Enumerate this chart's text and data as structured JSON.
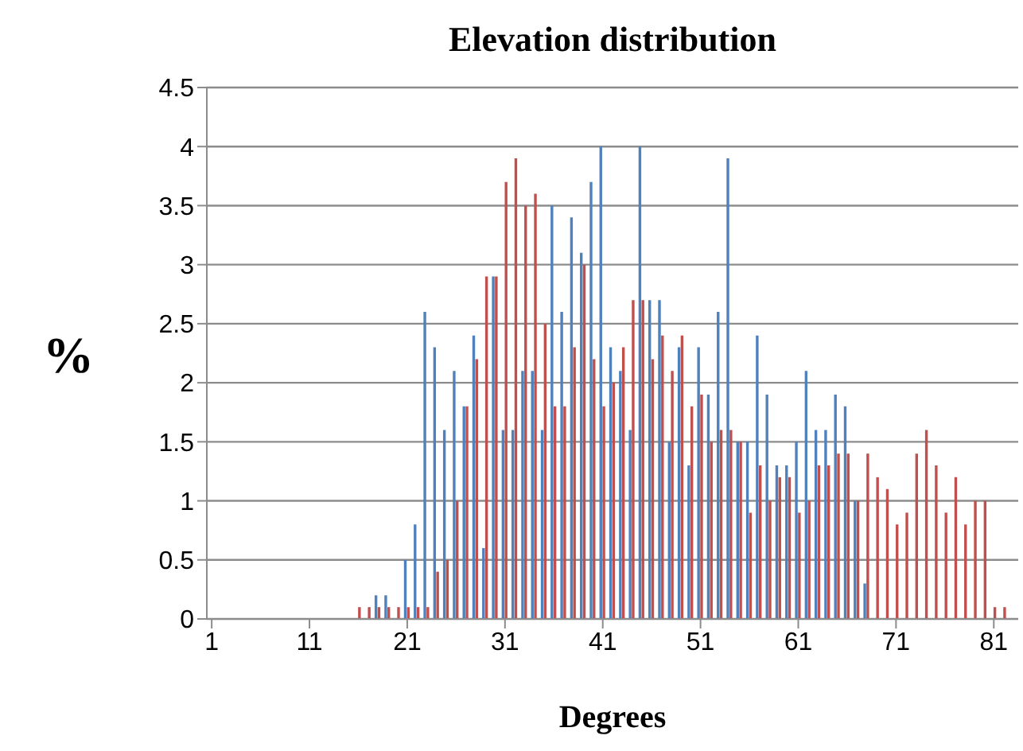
{
  "chart_data": {
    "type": "bar",
    "title": "Elevation distribution",
    "xlabel": "Degrees",
    "ylabel": "%",
    "categories": [
      "1",
      null,
      null,
      null,
      null,
      null,
      null,
      null,
      null,
      null,
      "11",
      null,
      null,
      null,
      null,
      null,
      null,
      null,
      null,
      null,
      "21",
      null,
      null,
      null,
      null,
      null,
      null,
      null,
      null,
      null,
      "31",
      null,
      null,
      null,
      null,
      null,
      null,
      null,
      null,
      null,
      "41",
      null,
      null,
      null,
      null,
      null,
      null,
      null,
      null,
      null,
      "51",
      null,
      null,
      null,
      null,
      null,
      null,
      null,
      null,
      null,
      "61",
      null,
      null,
      null,
      null,
      null,
      null,
      null,
      null,
      null,
      "71",
      null,
      null,
      null,
      null,
      null,
      null,
      null,
      null,
      null,
      "81",
      null,
      null
    ],
    "series": [
      {
        "color": "#4f81bd",
        "values": [
          0,
          0,
          0,
          0,
          0,
          0,
          0,
          0,
          0,
          0,
          0,
          0,
          0,
          0,
          0,
          0,
          0,
          0.2,
          0.2,
          0,
          0.5,
          0.8,
          2.6,
          2.3,
          1.6,
          2.1,
          1.8,
          2.4,
          0.6,
          2.9,
          1.6,
          1.6,
          2.1,
          2.1,
          1.6,
          3.5,
          2.6,
          3.4,
          3.1,
          3.7,
          4.0,
          2.3,
          2.1,
          1.6,
          4.0,
          2.7,
          2.7,
          1.5,
          2.3,
          1.3,
          2.3,
          1.9,
          2.6,
          3.9,
          1.5,
          1.5,
          2.4,
          1.9,
          1.3,
          1.3,
          1.5,
          2.1,
          1.6,
          1.6,
          1.9,
          1.8,
          1.0,
          0.3,
          0,
          0,
          0,
          0,
          0,
          0,
          0,
          0,
          0,
          0,
          0,
          0,
          0,
          0,
          0
        ]
      },
      {
        "color": "#c0504d",
        "values": [
          0,
          0,
          0,
          0,
          0,
          0,
          0,
          0,
          0,
          0,
          0,
          0,
          0,
          0,
          0,
          0.1,
          0.1,
          0.1,
          0.1,
          0.1,
          0.1,
          0.1,
          0.1,
          0.4,
          0.5,
          1.0,
          1.8,
          2.2,
          2.9,
          2.9,
          3.7,
          3.9,
          3.5,
          3.6,
          2.5,
          1.8,
          1.8,
          2.3,
          3.0,
          2.2,
          1.8,
          2.0,
          2.3,
          2.7,
          2.7,
          2.2,
          2.4,
          2.1,
          2.4,
          1.8,
          1.9,
          1.5,
          1.6,
          1.6,
          1.5,
          0.9,
          1.3,
          1.0,
          1.2,
          1.2,
          0.9,
          1.0,
          1.3,
          1.3,
          1.4,
          1.4,
          1.0,
          1.4,
          1.2,
          1.1,
          0.8,
          0.9,
          1.4,
          1.6,
          1.3,
          0.9,
          1.2,
          0.8,
          1.0,
          1.0,
          0.1,
          0.1,
          0
        ]
      }
    ],
    "ylim": [
      0,
      4.5
    ],
    "yticks": [
      0,
      0.5,
      1,
      1.5,
      2,
      2.5,
      3,
      3.5,
      4,
      4.5
    ],
    "grid": "y"
  }
}
